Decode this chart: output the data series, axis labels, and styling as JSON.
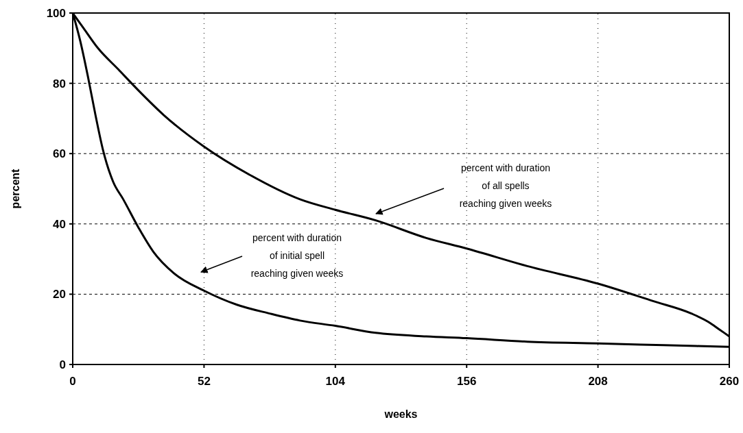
{
  "chart_data": {
    "type": "line",
    "xlabel": "weeks",
    "ylabel": "percent",
    "xlim": [
      0,
      260
    ],
    "xticks": [
      0,
      52,
      104,
      156,
      208,
      260
    ],
    "ylim": [
      0,
      100
    ],
    "yticks": [
      0,
      20,
      40,
      60,
      80,
      100
    ],
    "grid": true,
    "marker": "none",
    "line_style": "solid",
    "series": [
      {
        "color": "#000000",
        "x": [
          0,
          4,
          10,
          18,
          26,
          36,
          52,
          70,
          90,
          104,
          120,
          140,
          156,
          180,
          208,
          230,
          245,
          252,
          256,
          260
        ],
        "values": [
          100,
          96,
          90,
          84,
          78,
          71,
          62,
          54,
          47,
          44,
          41,
          36,
          33,
          28,
          23,
          18,
          14.5,
          12,
          10,
          8
        ]
      },
      {
        "color": "#000000",
        "x": [
          0,
          3,
          6,
          9,
          12,
          16,
          20,
          26,
          32,
          40,
          52,
          65,
          78,
          90,
          104,
          120,
          140,
          156,
          180,
          208,
          234,
          260
        ],
        "values": [
          100,
          92,
          82,
          71,
          61,
          52,
          47,
          39,
          32,
          26,
          21,
          17,
          14.5,
          12.5,
          11,
          9,
          8,
          7.5,
          6.5,
          6,
          5.5,
          5
        ]
      }
    ],
    "annotations": [
      "percent with duration\nof all spells\nreaching given weeks",
      "percent with duration\nof initial spell\nreaching given weeks"
    ]
  }
}
